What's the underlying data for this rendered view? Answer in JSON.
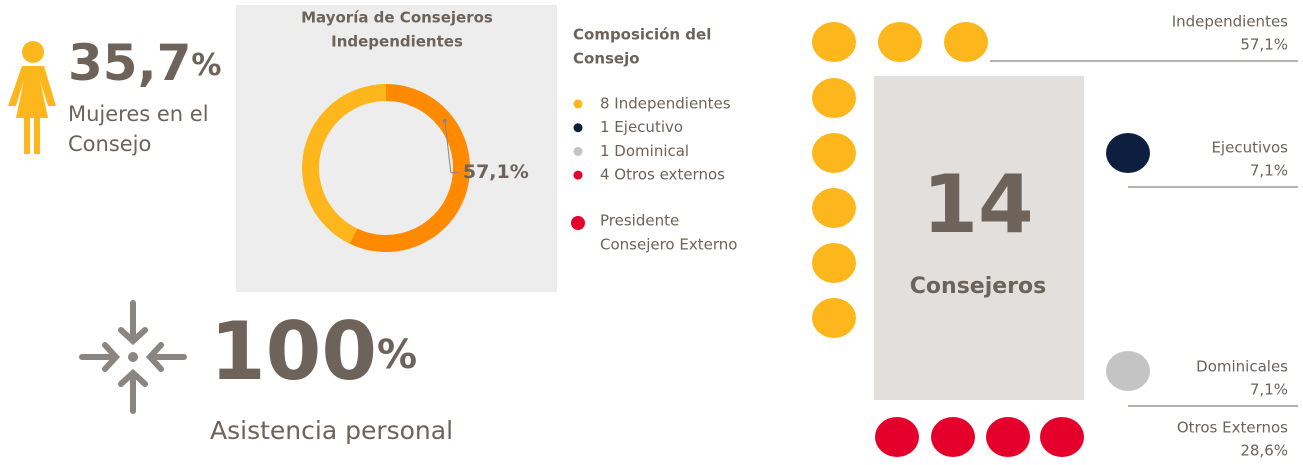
{
  "women": {
    "value": "35,7",
    "unit": "%",
    "label": [
      "Mujeres en el",
      "Consejo"
    ]
  },
  "attendance": {
    "value": "100",
    "unit": "%",
    "label": "Asistencia personal"
  },
  "donut": {
    "title": [
      "Mayoría de Consejeros",
      "Independientes"
    ],
    "values": [
      57.1,
      42.9
    ],
    "value_labels": [
      "57,1%",
      null
    ],
    "colors": [
      "#ff8a00",
      "#fdb71c"
    ]
  },
  "legend": {
    "title": [
      "Composición del",
      "Consejo"
    ],
    "items": [
      {
        "text": "8 Independientes",
        "color": "#fdb71c"
      },
      {
        "text": "1 Ejecutivo",
        "color": "#0c1f3f"
      },
      {
        "text": "1 Dominical",
        "color": "#c4c4c4"
      },
      {
        "text": "4 Otros externos",
        "color": "#e4002b"
      }
    ],
    "president": {
      "text": [
        "Presidente",
        "Consejero Externo"
      ],
      "color": "#e4002b"
    }
  },
  "board": {
    "total": "14",
    "label": "Consejeros",
    "groups": [
      {
        "name": "Independientes",
        "share": "57,1%",
        "count": 8,
        "color": "#fdb71c"
      },
      {
        "name": "Ejecutivos",
        "share": "7,1%",
        "count": 1,
        "color": "#0c1f3f"
      },
      {
        "name": "Dominicales",
        "share": "7,1%",
        "count": 1,
        "color": "#c4c4c4"
      },
      {
        "name": "Otros Externos",
        "share": "28,6%",
        "count": 4,
        "color": "#e4002b"
      }
    ]
  }
}
